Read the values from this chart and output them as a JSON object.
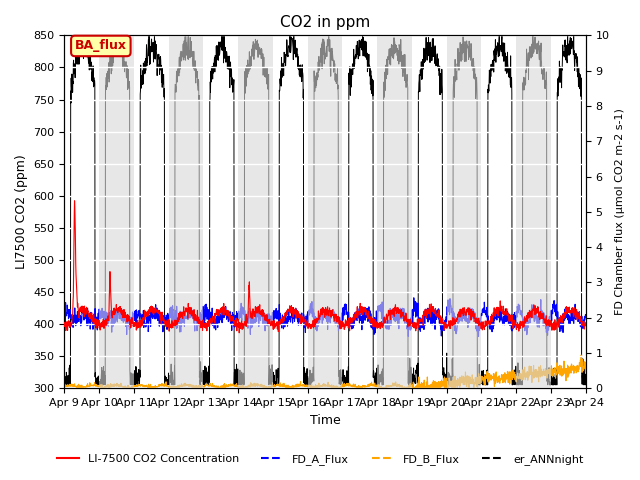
{
  "title": "CO2 in ppm",
  "xlabel": "Time",
  "ylabel_left": "LI7500 CO2 (ppm)",
  "ylabel_right": "FD Chamber flux (µmol CO2 m-2 s-1)",
  "xlim": [
    0,
    15
  ],
  "ylim_left": [
    300,
    850
  ],
  "ylim_right": [
    0.0,
    10.0
  ],
  "yticks_left": [
    300,
    350,
    400,
    450,
    500,
    550,
    600,
    650,
    700,
    750,
    800,
    850
  ],
  "yticks_right": [
    0.0,
    1.0,
    2.0,
    3.0,
    4.0,
    5.0,
    6.0,
    7.0,
    8.0,
    9.0,
    10.0
  ],
  "xtick_labels": [
    "Apr 9",
    "Apr 10",
    "Apr 11",
    "Apr 12",
    "Apr 13",
    "Apr 14",
    "Apr 15",
    "Apr 16",
    "Apr 17",
    "Apr 18",
    "Apr 19",
    "Apr 20",
    "Apr 21",
    "Apr 22",
    "Apr 23",
    "Apr 24"
  ],
  "legend_labels": [
    "LI-7500 CO2 Concentration",
    "FD_A_Flux",
    "FD_B_Flux",
    "er_ANNnight"
  ],
  "legend_colors": [
    "red",
    "blue",
    "orange",
    "black"
  ],
  "ba_flux_label": "BA_flux",
  "ba_flux_color": "#cc0000",
  "ba_flux_bg": "#ffffaa",
  "shading_color": "#d8d8d8",
  "grid_color": "#ffffff"
}
